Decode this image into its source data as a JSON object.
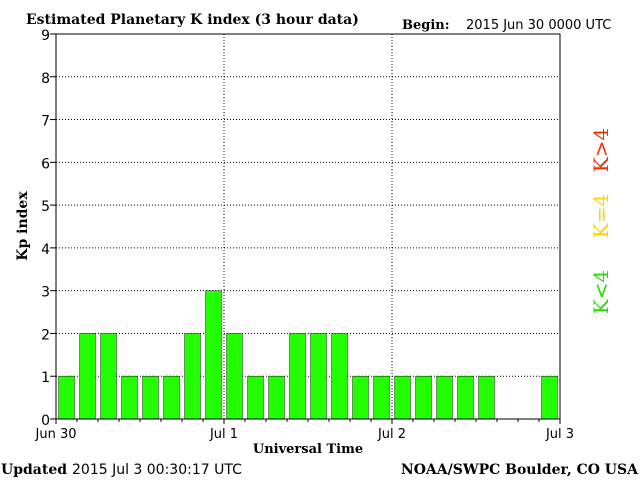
{
  "header": {
    "title": "Estimated Planetary K index (3 hour data)",
    "begin_label": "Begin:",
    "begin_value": "2015 Jun 30 0000 UTC"
  },
  "footer": {
    "updated_label": "Updated",
    "updated_value": "2015 Jul  3 00:30:17 UTC",
    "source": "NOAA/SWPC Boulder, CO USA"
  },
  "legend": [
    {
      "label": "K>4",
      "color": "#ff2a00"
    },
    {
      "label": "K=4",
      "color": "#ffd200"
    },
    {
      "label": "K<4",
      "color": "#22dd00"
    }
  ],
  "colors": {
    "bar": "#22ff00",
    "axis": "#000000"
  },
  "chart_data": {
    "type": "bar",
    "title": "Estimated Planetary K index (3 hour data)",
    "xlabel": "Universal Time",
    "ylabel": "Kp index",
    "ylim": [
      0,
      9
    ],
    "yticks": [
      0,
      1,
      2,
      3,
      4,
      5,
      6,
      7,
      8,
      9
    ],
    "xtick_labels": [
      "Jun 30",
      "Jul 1",
      "Jul 2",
      "Jul 3"
    ],
    "interval_hours": 3,
    "grid": "dotted vertical at day boundaries and horizontal at integer Kp",
    "values": [
      1,
      2,
      2,
      1,
      1,
      1,
      2,
      3,
      2,
      1,
      1,
      2,
      2,
      2,
      1,
      1,
      1,
      1,
      1,
      1,
      1,
      null,
      null,
      1
    ]
  }
}
